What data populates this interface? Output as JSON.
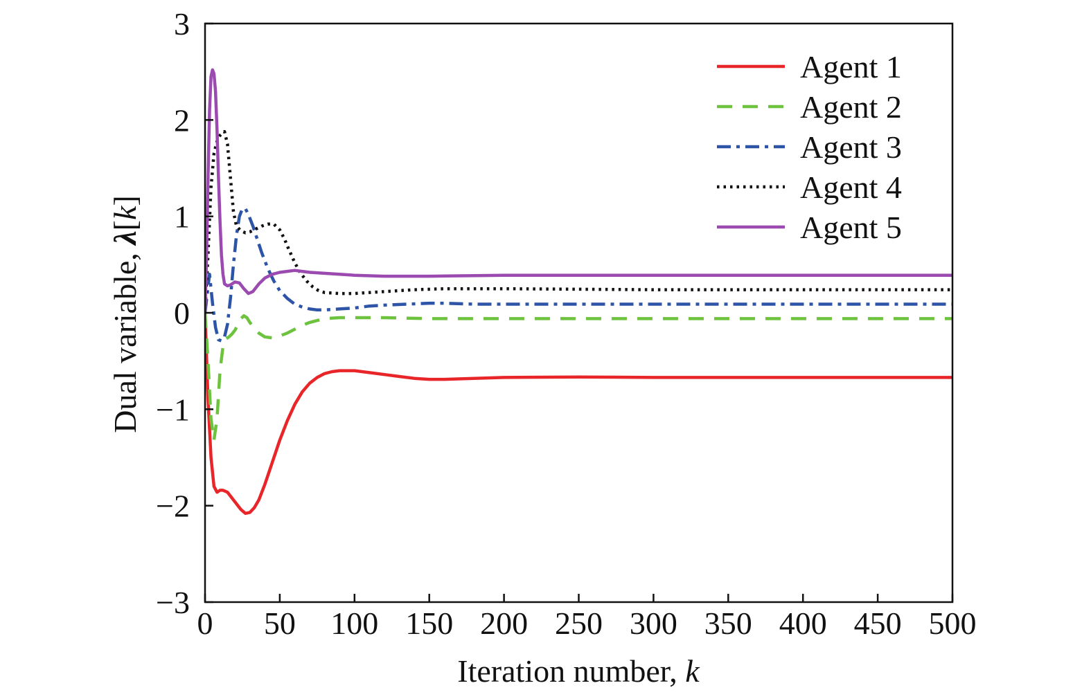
{
  "chart_data": {
    "type": "line",
    "title": "",
    "xlabel": "Iteration number, ",
    "xlabel_var": "k",
    "ylabel": "Dual variable, ",
    "ylabel_var": "λ",
    "ylabel_bracket_open": "[",
    "ylabel_bracket_var": "k",
    "ylabel_bracket_close": "]",
    "xlim": [
      0,
      500
    ],
    "ylim": [
      -3,
      3
    ],
    "xticks": [
      0,
      50,
      100,
      150,
      200,
      250,
      300,
      350,
      400,
      450,
      500
    ],
    "yticks": [
      -3,
      -2,
      -1,
      0,
      1,
      2,
      3
    ],
    "xtick_labels": [
      "0",
      "50",
      "100",
      "150",
      "200",
      "250",
      "300",
      "350",
      "400",
      "450",
      "500"
    ],
    "ytick_labels": [
      "−3",
      "−2",
      "−1",
      "0",
      "1",
      "2",
      "3"
    ],
    "grid": false,
    "legend_position": "top-right",
    "series": [
      {
        "name": "Agent 1",
        "color": "#e8262a",
        "dash": "solid",
        "points": [
          [
            0,
            0
          ],
          [
            2,
            -0.9
          ],
          [
            4,
            -1.5
          ],
          [
            6,
            -1.8
          ],
          [
            8,
            -1.86
          ],
          [
            10,
            -1.84
          ],
          [
            12,
            -1.84
          ],
          [
            15,
            -1.86
          ],
          [
            18,
            -1.92
          ],
          [
            21,
            -1.98
          ],
          [
            24,
            -2.04
          ],
          [
            27,
            -2.08
          ],
          [
            30,
            -2.07
          ],
          [
            33,
            -2.02
          ],
          [
            36,
            -1.94
          ],
          [
            40,
            -1.78
          ],
          [
            45,
            -1.55
          ],
          [
            50,
            -1.32
          ],
          [
            55,
            -1.12
          ],
          [
            60,
            -0.95
          ],
          [
            65,
            -0.82
          ],
          [
            70,
            -0.73
          ],
          [
            75,
            -0.67
          ],
          [
            80,
            -0.63
          ],
          [
            85,
            -0.61
          ],
          [
            90,
            -0.6
          ],
          [
            95,
            -0.6
          ],
          [
            100,
            -0.6
          ],
          [
            110,
            -0.62
          ],
          [
            120,
            -0.64
          ],
          [
            130,
            -0.66
          ],
          [
            140,
            -0.68
          ],
          [
            150,
            -0.69
          ],
          [
            160,
            -0.69
          ],
          [
            180,
            -0.68
          ],
          [
            200,
            -0.67
          ],
          [
            250,
            -0.665
          ],
          [
            300,
            -0.67
          ],
          [
            350,
            -0.67
          ],
          [
            400,
            -0.67
          ],
          [
            450,
            -0.67
          ],
          [
            500,
            -0.67
          ]
        ]
      },
      {
        "name": "Agent 2",
        "color": "#6dc23e",
        "dash": "long-dash",
        "points": [
          [
            0,
            0
          ],
          [
            2,
            -0.5
          ],
          [
            4,
            -1.1
          ],
          [
            6,
            -1.32
          ],
          [
            8,
            -1.1
          ],
          [
            10,
            -0.6
          ],
          [
            12,
            -0.35
          ],
          [
            14,
            -0.27
          ],
          [
            16,
            -0.25
          ],
          [
            18,
            -0.22
          ],
          [
            20,
            -0.18
          ],
          [
            22,
            -0.12
          ],
          [
            24,
            -0.06
          ],
          [
            26,
            -0.03
          ],
          [
            28,
            -0.05
          ],
          [
            30,
            -0.1
          ],
          [
            33,
            -0.16
          ],
          [
            36,
            -0.21
          ],
          [
            40,
            -0.25
          ],
          [
            45,
            -0.26
          ],
          [
            50,
            -0.24
          ],
          [
            55,
            -0.21
          ],
          [
            60,
            -0.17
          ],
          [
            65,
            -0.13
          ],
          [
            70,
            -0.1
          ],
          [
            75,
            -0.08
          ],
          [
            80,
            -0.06
          ],
          [
            90,
            -0.05
          ],
          [
            100,
            -0.05
          ],
          [
            120,
            -0.05
          ],
          [
            150,
            -0.06
          ],
          [
            200,
            -0.06
          ],
          [
            300,
            -0.06
          ],
          [
            400,
            -0.06
          ],
          [
            500,
            -0.06
          ]
        ]
      },
      {
        "name": "Agent 3",
        "color": "#2e54a8",
        "dash": "dash-dot",
        "points": [
          [
            0,
            0
          ],
          [
            3,
            0.4
          ],
          [
            5,
            0.1
          ],
          [
            7,
            -0.15
          ],
          [
            9,
            -0.28
          ],
          [
            11,
            -0.29
          ],
          [
            13,
            -0.25
          ],
          [
            15,
            -0.12
          ],
          [
            17,
            0.15
          ],
          [
            19,
            0.5
          ],
          [
            21,
            0.8
          ],
          [
            23,
            1
          ],
          [
            25,
            1.08
          ],
          [
            27,
            1.08
          ],
          [
            29,
            1.02
          ],
          [
            32,
            0.9
          ],
          [
            35,
            0.76
          ],
          [
            38,
            0.62
          ],
          [
            42,
            0.46
          ],
          [
            46,
            0.33
          ],
          [
            50,
            0.23
          ],
          [
            55,
            0.15
          ],
          [
            60,
            0.09
          ],
          [
            65,
            0.06
          ],
          [
            70,
            0.04
          ],
          [
            75,
            0.03
          ],
          [
            80,
            0.03
          ],
          [
            90,
            0.04
          ],
          [
            100,
            0.05
          ],
          [
            110,
            0.07
          ],
          [
            120,
            0.08
          ],
          [
            135,
            0.09
          ],
          [
            150,
            0.1
          ],
          [
            160,
            0.1
          ],
          [
            180,
            0.09
          ],
          [
            200,
            0.09
          ],
          [
            250,
            0.09
          ],
          [
            300,
            0.09
          ],
          [
            400,
            0.09
          ],
          [
            500,
            0.09
          ]
        ]
      },
      {
        "name": "Agent 4",
        "color": "#111111",
        "dash": "dotted",
        "points": [
          [
            0,
            0
          ],
          [
            2,
            0.6
          ],
          [
            4,
            1.3
          ],
          [
            6,
            1.65
          ],
          [
            8,
            1.78
          ],
          [
            10,
            1.84
          ],
          [
            12,
            1.87
          ],
          [
            13,
            1.88
          ],
          [
            15,
            1.75
          ],
          [
            17,
            1.4
          ],
          [
            19,
            1.05
          ],
          [
            21,
            0.9
          ],
          [
            24,
            0.85
          ],
          [
            27,
            0.83
          ],
          [
            30,
            0.84
          ],
          [
            34,
            0.87
          ],
          [
            38,
            0.9
          ],
          [
            42,
            0.92
          ],
          [
            46,
            0.92
          ],
          [
            50,
            0.86
          ],
          [
            53,
            0.77
          ],
          [
            56,
            0.66
          ],
          [
            60,
            0.52
          ],
          [
            64,
            0.41
          ],
          [
            68,
            0.33
          ],
          [
            72,
            0.27
          ],
          [
            76,
            0.23
          ],
          [
            80,
            0.21
          ],
          [
            90,
            0.2
          ],
          [
            100,
            0.2
          ],
          [
            120,
            0.22
          ],
          [
            140,
            0.24
          ],
          [
            160,
            0.25
          ],
          [
            200,
            0.25
          ],
          [
            300,
            0.24
          ],
          [
            400,
            0.24
          ],
          [
            500,
            0.24
          ]
        ]
      },
      {
        "name": "Agent 5",
        "color": "#9b4bb0",
        "dash": "solid",
        "points": [
          [
            0,
            0
          ],
          [
            1,
            0.6
          ],
          [
            2,
            1.4
          ],
          [
            3,
            2.1
          ],
          [
            4,
            2.45
          ],
          [
            5,
            2.52
          ],
          [
            6,
            2.48
          ],
          [
            7,
            2.3
          ],
          [
            8,
            1.9
          ],
          [
            9,
            1.4
          ],
          [
            10,
            0.95
          ],
          [
            11,
            0.6
          ],
          [
            12,
            0.4
          ],
          [
            13,
            0.3
          ],
          [
            15,
            0.28
          ],
          [
            17,
            0.29
          ],
          [
            20,
            0.32
          ],
          [
            23,
            0.31
          ],
          [
            26,
            0.25
          ],
          [
            29,
            0.2
          ],
          [
            32,
            0.22
          ],
          [
            36,
            0.3
          ],
          [
            40,
            0.36
          ],
          [
            45,
            0.4
          ],
          [
            50,
            0.42
          ],
          [
            55,
            0.43
          ],
          [
            60,
            0.44
          ],
          [
            65,
            0.43
          ],
          [
            70,
            0.42
          ],
          [
            80,
            0.41
          ],
          [
            100,
            0.39
          ],
          [
            120,
            0.38
          ],
          [
            150,
            0.38
          ],
          [
            200,
            0.39
          ],
          [
            300,
            0.39
          ],
          [
            400,
            0.39
          ],
          [
            500,
            0.39
          ]
        ]
      }
    ]
  }
}
